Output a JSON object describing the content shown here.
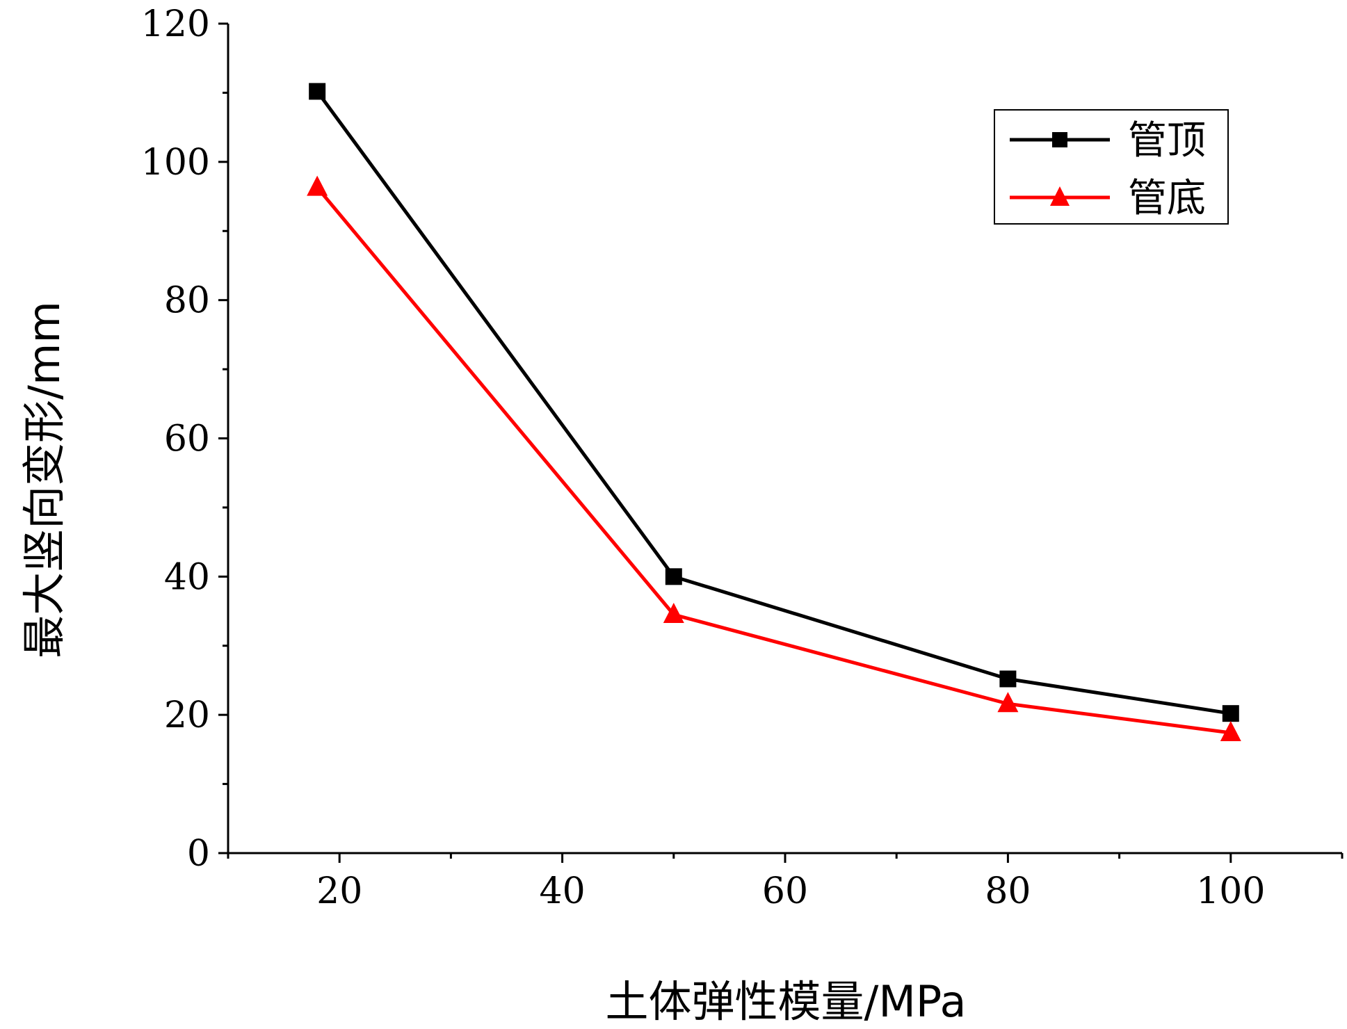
{
  "chart_data": {
    "type": "line",
    "title": "",
    "xlabel": "土体弹性模量/MPa",
    "ylabel": "最大竖向变形/mm",
    "x": [
      18,
      50,
      80,
      100
    ],
    "xlim": [
      10,
      110
    ],
    "ylim": [
      0,
      120
    ],
    "xticks": [
      20,
      40,
      60,
      80,
      100
    ],
    "yticks": [
      0,
      20,
      40,
      60,
      80,
      100,
      120
    ],
    "xtick_labels": [
      "20",
      "40",
      "60",
      "80",
      "100"
    ],
    "ytick_labels": [
      "0",
      "20",
      "40",
      "60",
      "80",
      "100",
      "120"
    ],
    "legend_position": "top-right",
    "series": [
      {
        "name": "管顶",
        "marker": "square",
        "color": "#000000",
        "values": [
          110.2,
          40.0,
          25.2,
          20.2
        ]
      },
      {
        "name": "管底",
        "marker": "triangle",
        "color": "#ff0000",
        "values": [
          96.3,
          34.5,
          21.6,
          17.4
        ]
      }
    ]
  }
}
